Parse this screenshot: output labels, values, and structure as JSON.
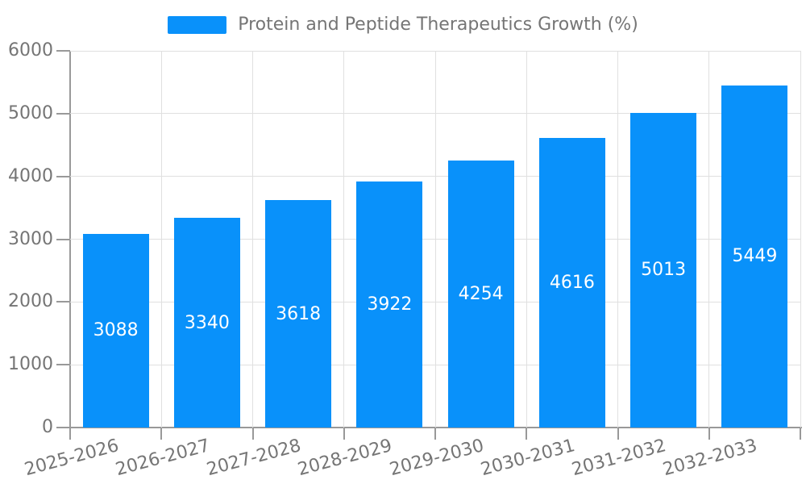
{
  "legend": {
    "label": "Protein and Peptide Therapeutics Growth (%)"
  },
  "colors": {
    "bar": "#0991FA",
    "axis_text": "#757575",
    "legend_text": "#757575",
    "grid_line": "#E0E0E0",
    "axis_line": "#999999",
    "value_label": "#FFFFFF",
    "background": "#FFFFFF"
  },
  "chart_data": {
    "type": "bar",
    "title": "Protein and Peptide Therapeutics Growth (%)",
    "categories": [
      "2025-2026",
      "2026-2027",
      "2027-2028",
      "2028-2029",
      "2029-2030",
      "2030-2031",
      "2031-2032",
      "2032-2033"
    ],
    "values": [
      3088,
      3340,
      3618,
      3922,
      4254,
      4616,
      5013,
      5449
    ],
    "value_labels": [
      "3088",
      "3340",
      "3618",
      "3922",
      "4254",
      "4616",
      "5013",
      "5449"
    ],
    "xlabel": "",
    "ylabel": "",
    "ylim": [
      0,
      6000
    ],
    "yticks": [
      0,
      1000,
      2000,
      3000,
      4000,
      5000,
      6000
    ],
    "ytick_labels": [
      "0",
      "1000",
      "2000",
      "3000",
      "4000",
      "5000",
      "6000"
    ],
    "grid": true,
    "x_label_rotation_deg": -15,
    "legend_position": "top-center",
    "bar_value_label_position": "inside-center"
  }
}
